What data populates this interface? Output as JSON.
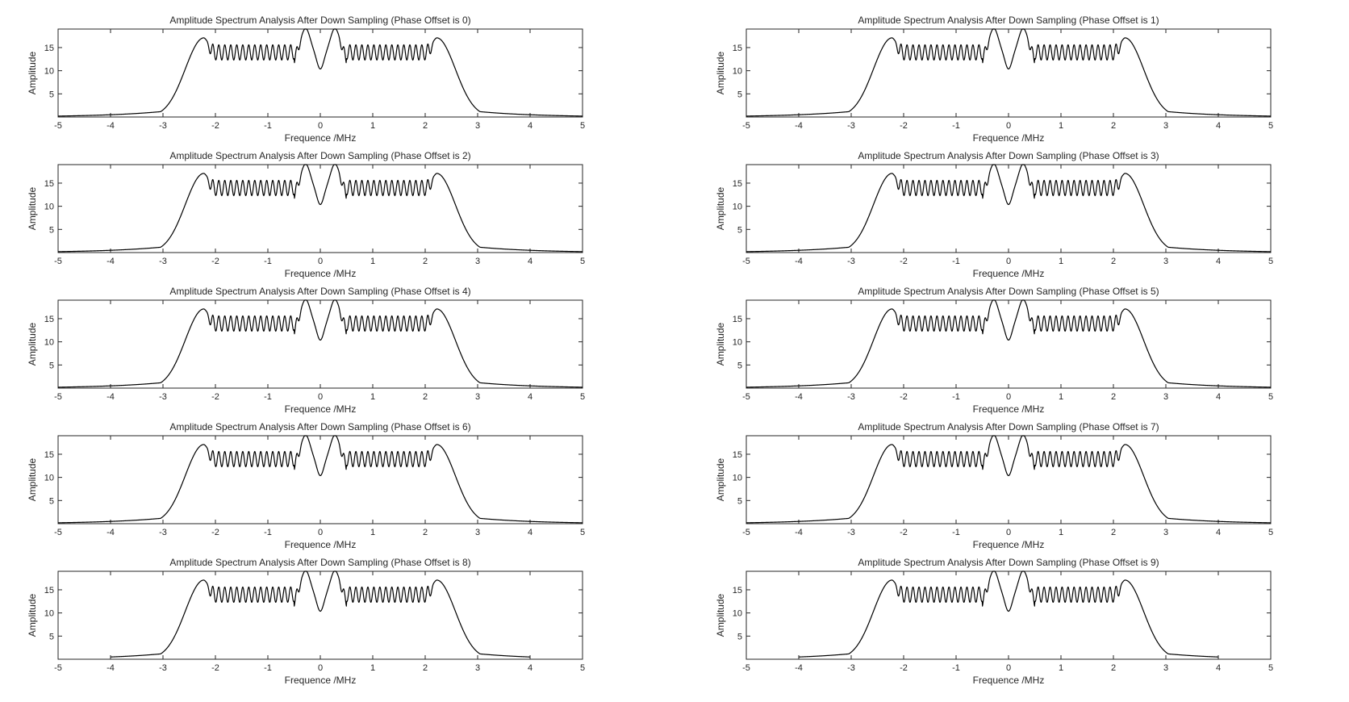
{
  "figure": {
    "layout": {
      "rows": 5,
      "cols": 2
    }
  },
  "chart_data": [
    {
      "type": "line",
      "title": "Amplitude Spectrum Analysis After Down Sampling (Phase Offset is 0)",
      "xlabel": "Frequence /MHz",
      "ylabel": "Amplitude",
      "xlim": [
        -5,
        5
      ],
      "ylim": [
        0,
        19
      ],
      "xticks": [
        "-5",
        "-4",
        "-3",
        "-2",
        "-1",
        "0",
        "1",
        "2",
        "3",
        "4",
        "5"
      ],
      "yticks": [
        "5",
        "10",
        "15"
      ],
      "x_range": [
        -5,
        5
      ],
      "grid": false,
      "legend": "none"
    },
    {
      "type": "line",
      "title": "Amplitude Spectrum Analysis After Down Sampling (Phase Offset is 1)",
      "xlabel": "Frequence /MHz",
      "ylabel": "Amplitude",
      "xlim": [
        -5,
        5
      ],
      "ylim": [
        0,
        19
      ],
      "xticks": [
        "-5",
        "-4",
        "-3",
        "-2",
        "-1",
        "0",
        "1",
        "2",
        "3",
        "4",
        "5"
      ],
      "yticks": [
        "5",
        "10",
        "15"
      ],
      "x_range": [
        -5,
        5
      ],
      "grid": false,
      "legend": "none"
    },
    {
      "type": "line",
      "title": "Amplitude Spectrum Analysis After Down Sampling (Phase Offset is 2)",
      "xlabel": "Frequence /MHz",
      "ylabel": "Amplitude",
      "xlim": [
        -5,
        5
      ],
      "ylim": [
        0,
        19
      ],
      "xticks": [
        "-5",
        "-4",
        "-3",
        "-2",
        "-1",
        "0",
        "1",
        "2",
        "3",
        "4",
        "5"
      ],
      "yticks": [
        "5",
        "10",
        "15"
      ],
      "x_range": [
        -5,
        5
      ],
      "grid": false,
      "legend": "none"
    },
    {
      "type": "line",
      "title": "Amplitude Spectrum Analysis After Down Sampling (Phase Offset is 3)",
      "xlabel": "Frequence /MHz",
      "ylabel": "Amplitude",
      "xlim": [
        -5,
        5
      ],
      "ylim": [
        0,
        19
      ],
      "xticks": [
        "-5",
        "-4",
        "-3",
        "-2",
        "-1",
        "0",
        "1",
        "2",
        "3",
        "4",
        "5"
      ],
      "yticks": [
        "5",
        "10",
        "15"
      ],
      "x_range": [
        -5,
        5
      ],
      "grid": false,
      "legend": "none"
    },
    {
      "type": "line",
      "title": "Amplitude Spectrum Analysis After Down Sampling (Phase Offset is 4)",
      "xlabel": "Frequence /MHz",
      "ylabel": "Amplitude",
      "xlim": [
        -5,
        5
      ],
      "ylim": [
        0,
        19
      ],
      "xticks": [
        "-5",
        "-4",
        "-3",
        "-2",
        "-1",
        "0",
        "1",
        "2",
        "3",
        "4",
        "5"
      ],
      "yticks": [
        "5",
        "10",
        "15"
      ],
      "x_range": [
        -5,
        5
      ],
      "grid": false,
      "legend": "none"
    },
    {
      "type": "line",
      "title": "Amplitude Spectrum Analysis After Down Sampling (Phase Offset is 5)",
      "xlabel": "Frequence /MHz",
      "ylabel": "Amplitude",
      "xlim": [
        -5,
        5
      ],
      "ylim": [
        0,
        19
      ],
      "xticks": [
        "-5",
        "-4",
        "-3",
        "-2",
        "-1",
        "0",
        "1",
        "2",
        "3",
        "4",
        "5"
      ],
      "yticks": [
        "5",
        "10",
        "15"
      ],
      "x_range": [
        -5,
        5
      ],
      "grid": false,
      "legend": "none"
    },
    {
      "type": "line",
      "title": "Amplitude Spectrum Analysis After Down Sampling (Phase Offset is 6)",
      "xlabel": "Frequence /MHz",
      "ylabel": "Amplitude",
      "xlim": [
        -5,
        5
      ],
      "ylim": [
        0,
        19
      ],
      "xticks": [
        "-5",
        "-4",
        "-3",
        "-2",
        "-1",
        "0",
        "1",
        "2",
        "3",
        "4",
        "5"
      ],
      "yticks": [
        "5",
        "10",
        "15"
      ],
      "x_range": [
        -5,
        5
      ],
      "grid": false,
      "legend": "none"
    },
    {
      "type": "line",
      "title": "Amplitude Spectrum Analysis After Down Sampling (Phase Offset is 7)",
      "xlabel": "Frequence /MHz",
      "ylabel": "Amplitude",
      "xlim": [
        -5,
        5
      ],
      "ylim": [
        0,
        19
      ],
      "xticks": [
        "-5",
        "-4",
        "-3",
        "-2",
        "-1",
        "0",
        "1",
        "2",
        "3",
        "4",
        "5"
      ],
      "yticks": [
        "5",
        "10",
        "15"
      ],
      "x_range": [
        -5,
        5
      ],
      "grid": false,
      "legend": "none"
    },
    {
      "type": "line",
      "title": "Amplitude Spectrum Analysis After Down Sampling (Phase Offset is 8)",
      "xlabel": "Frequence /MHz",
      "ylabel": "Amplitude",
      "xlim": [
        -5,
        5
      ],
      "ylim": [
        0,
        19
      ],
      "xticks": [
        "-5",
        "-4",
        "-3",
        "-2",
        "-1",
        "0",
        "1",
        "2",
        "3",
        "4",
        "5"
      ],
      "yticks": [
        "5",
        "10",
        "15"
      ],
      "x_range": [
        -4,
        4
      ],
      "grid": false,
      "legend": "none"
    },
    {
      "type": "line",
      "title": "Amplitude Spectrum Analysis After Down Sampling (Phase Offset is 9)",
      "xlabel": "Frequence /MHz",
      "ylabel": "Amplitude",
      "xlim": [
        -5,
        5
      ],
      "ylim": [
        0,
        19
      ],
      "xticks": [
        "-5",
        "-4",
        "-3",
        "-2",
        "-1",
        "0",
        "1",
        "2",
        "3",
        "4",
        "5"
      ],
      "yticks": [
        "5",
        "10",
        "15"
      ],
      "x_range": [
        -4,
        4
      ],
      "grid": false,
      "legend": "none"
    }
  ],
  "spectrum_shape": {
    "edge_peaks": {
      "x": [
        -2.22,
        2.22
      ],
      "y": 17.1
    },
    "center_peaks": {
      "x": [
        -0.28,
        0.28
      ],
      "y": 19.0
    },
    "center_dip": {
      "x": 0,
      "y": 10.2
    },
    "ripple_band": {
      "upper": 15.6,
      "lower": 12.3,
      "count_per_side": 14
    },
    "outer_skirt": {
      "x": [
        -3,
        3
      ],
      "y": 1.2
    }
  },
  "colors": {
    "background": "#ffffff",
    "axes": "#262626",
    "line": "#000000"
  }
}
